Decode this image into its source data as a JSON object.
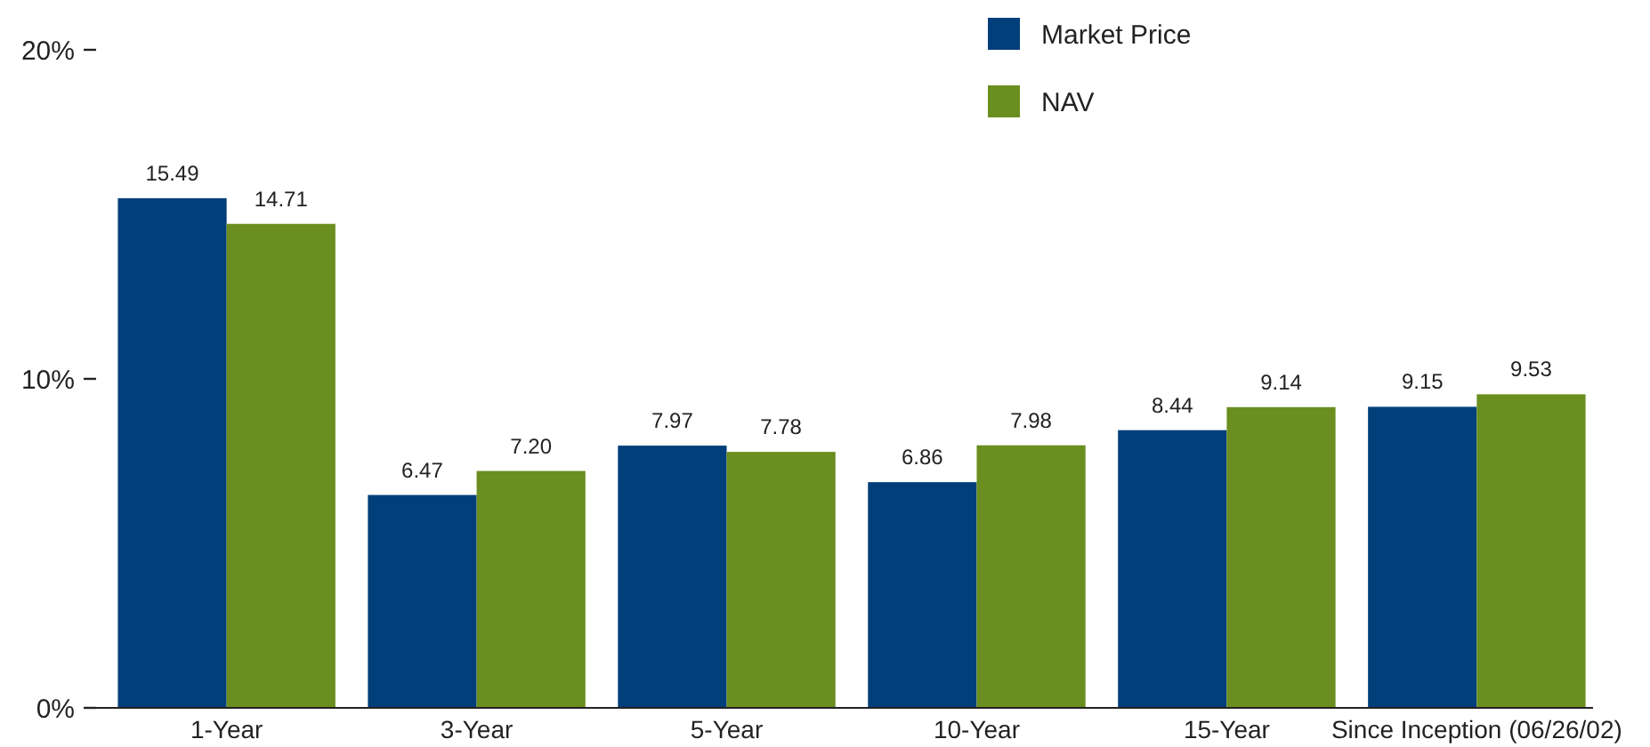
{
  "chart_data": {
    "type": "bar",
    "categories": [
      "1-Year",
      "3-Year",
      "5-Year",
      "10-Year",
      "15-Year",
      "Since Inception (06/26/02)"
    ],
    "series": [
      {
        "name": "Market Price",
        "color": "#003f7a",
        "values": [
          15.49,
          6.47,
          7.97,
          6.86,
          8.44,
          9.15
        ],
        "value_labels": [
          "15.49",
          "6.47",
          "7.97",
          "6.86",
          "8.44",
          "9.15"
        ]
      },
      {
        "name": "NAV",
        "color": "#6a8e1f",
        "values": [
          14.71,
          7.2,
          7.78,
          7.98,
          9.14,
          9.53
        ],
        "value_labels": [
          "14.71",
          "7.20",
          "7.78",
          "7.98",
          "9.14",
          "9.53"
        ]
      }
    ],
    "ylim": [
      0,
      20
    ],
    "yticks": [
      {
        "value": 0,
        "label": "0%"
      },
      {
        "value": 10,
        "label": "10%"
      },
      {
        "value": 20,
        "label": "20%"
      }
    ],
    "legend": "top right",
    "grid": false
  }
}
